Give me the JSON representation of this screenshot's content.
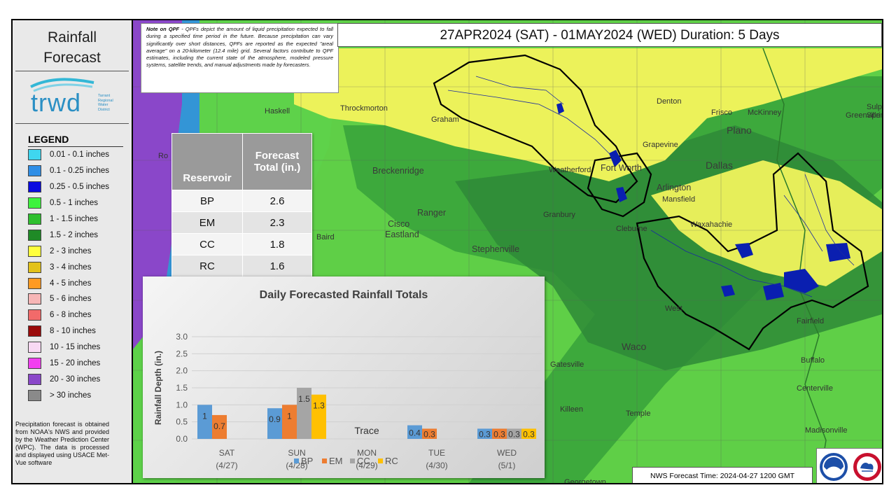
{
  "sidebar": {
    "title_line1": "Rainfall",
    "title_line2": "Forecast",
    "logo_text": "trwd",
    "logo_small1": "Tarrant",
    "logo_small2": "Regional",
    "logo_small3": "Water",
    "logo_small4": "District",
    "legend_title": "LEGEND",
    "legend": [
      {
        "label": "0.01 - 0.1 inches",
        "color": "#3fd6ef"
      },
      {
        "label": "0.1 - 0.25 inches",
        "color": "#2f8ee6"
      },
      {
        "label": "0.25 - 0.5 inches",
        "color": "#0a0ae0"
      },
      {
        "label": "0.5 - 1 inches",
        "color": "#3ef23e"
      },
      {
        "label": "1 - 1.5 inches",
        "color": "#2fbf2f"
      },
      {
        "label": "1.5 - 2 inches",
        "color": "#1f8a26"
      },
      {
        "label": "2 - 3 inches",
        "color": "#ffff3c"
      },
      {
        "label": "3 - 4 inches",
        "color": "#e3c21a"
      },
      {
        "label": "4 - 5 inches",
        "color": "#ff9a22"
      },
      {
        "label": "5 - 6 inches",
        "color": "#f7b6b6"
      },
      {
        "label": "6 - 8 inches",
        "color": "#f26a6a"
      },
      {
        "label": "8 - 10 inches",
        "color": "#9a0a0a"
      },
      {
        "label": "10 - 15 inches",
        "color": "#f8d9f3"
      },
      {
        "label": "15 - 20 inches",
        "color": "#f23ff0"
      },
      {
        "label": "20 - 30 inches",
        "color": "#8a47c9"
      },
      {
        "label": "> 30 inches",
        "color": "#8a8a8a"
      }
    ],
    "source_note": "Precipitation forecast is obtained from NOAA's NWS and provided by the Weather Prediction Center (WPC). The data is processed and displayed using USACE Met-Vue software"
  },
  "qpf_note": {
    "lead": "Note on QPF",
    "text": " - QPFs depict the amount of liquid precipitation expected to fall during a specified time period in the future. Because precipitation can vary significantly over short distances, QPFs are reported as the expected \"areal average\" on a 20-kilometer (12.4 mile) grid. Several factors contribute to QPF estimates, including the current state of the atmosphere, modeled pressure systems, satellite trends, and manual adjustments made by forecasters."
  },
  "header": {
    "date_range": "27APR2024 (SAT) - 01MAY2024 (WED) Duration: 5 Days"
  },
  "reservoir_table": {
    "col1": "Reservoir",
    "col2_line1": "Forecast",
    "col2_line2": "Total (in.)",
    "rows": [
      {
        "name": "BP",
        "total": "2.6"
      },
      {
        "name": "EM",
        "total": "2.3"
      },
      {
        "name": "CC",
        "total": "1.8"
      },
      {
        "name": "RC",
        "total": "1.6"
      }
    ]
  },
  "chart_data": {
    "type": "bar",
    "title": "Daily Forecasted Rainfall Totals",
    "ylabel": "Rainfall Depth (in.)",
    "ylim": [
      0,
      3.0
    ],
    "yticks": [
      "0.0",
      "0.5",
      "1.0",
      "1.5",
      "2.0",
      "2.5",
      "3.0"
    ],
    "categories": [
      {
        "line1": "SAT",
        "line2": "(4/27)"
      },
      {
        "line1": "SUN",
        "line2": "(4/28)"
      },
      {
        "line1": "MON",
        "line2": "(4/29)"
      },
      {
        "line1": "TUE",
        "line2": "(4/30)"
      },
      {
        "line1": "WED",
        "line2": "(5/1)"
      }
    ],
    "series": [
      {
        "name": "BP",
        "color": "#5b9bd5",
        "values": [
          1.0,
          0.9,
          0,
          0.4,
          0.3
        ],
        "labels": [
          "1",
          "0.9",
          "",
          "0.4",
          "0.3"
        ]
      },
      {
        "name": "EM",
        "color": "#ed7d31",
        "values": [
          0.7,
          1.0,
          0,
          0.3,
          0.3
        ],
        "labels": [
          "0.7",
          "1",
          "",
          "0.3",
          "0.3"
        ]
      },
      {
        "name": "CC",
        "color": "#a5a5a5",
        "values": [
          0,
          1.5,
          0,
          0,
          0.3
        ],
        "labels": [
          "",
          "1.5",
          "",
          "",
          "0.3"
        ]
      },
      {
        "name": "RC",
        "color": "#ffc000",
        "values": [
          0,
          1.3,
          0,
          0,
          0.3
        ],
        "labels": [
          "",
          "1.3",
          "",
          "",
          "0.3"
        ]
      }
    ],
    "annotation": "Trace",
    "legend_position": "bottom"
  },
  "footer": {
    "nws_time": "NWS Forecast Time: 2024-04-27 1200 GMT",
    "noaa_logo": "NOAA",
    "nws_logo": "NATIONAL WEATHER SERVICE"
  },
  "map_labels": {
    "cities": [
      "Haskell",
      "Throckmorton",
      "Graham",
      "Denton",
      "Frisco",
      "McKinney",
      "Greenville",
      "Plano",
      "Dallas",
      "Weatherford",
      "Breckenridge",
      "Arlington",
      "Mansfield",
      "Ranger",
      "Cisco",
      "Eastland",
      "Baird",
      "Granbury",
      "Cleburne",
      "Stephenville",
      "Waxahachie",
      "West",
      "Waco",
      "Fairfield",
      "Buffalo",
      "Gatesville",
      "Killeen",
      "Temple",
      "Centerville",
      "Madisonville",
      "Georgetown",
      "Sulphur Springs",
      "Ro",
      "Grapevine",
      "Fort Worth"
    ]
  },
  "colors": {
    "yellow_band": "#ecf25a",
    "green_light": "#5fcf47",
    "green_mid": "#3da93c",
    "green_dark": "#2e8a37",
    "purple": "#8a47c9",
    "lakes": "#0a1fb0"
  }
}
